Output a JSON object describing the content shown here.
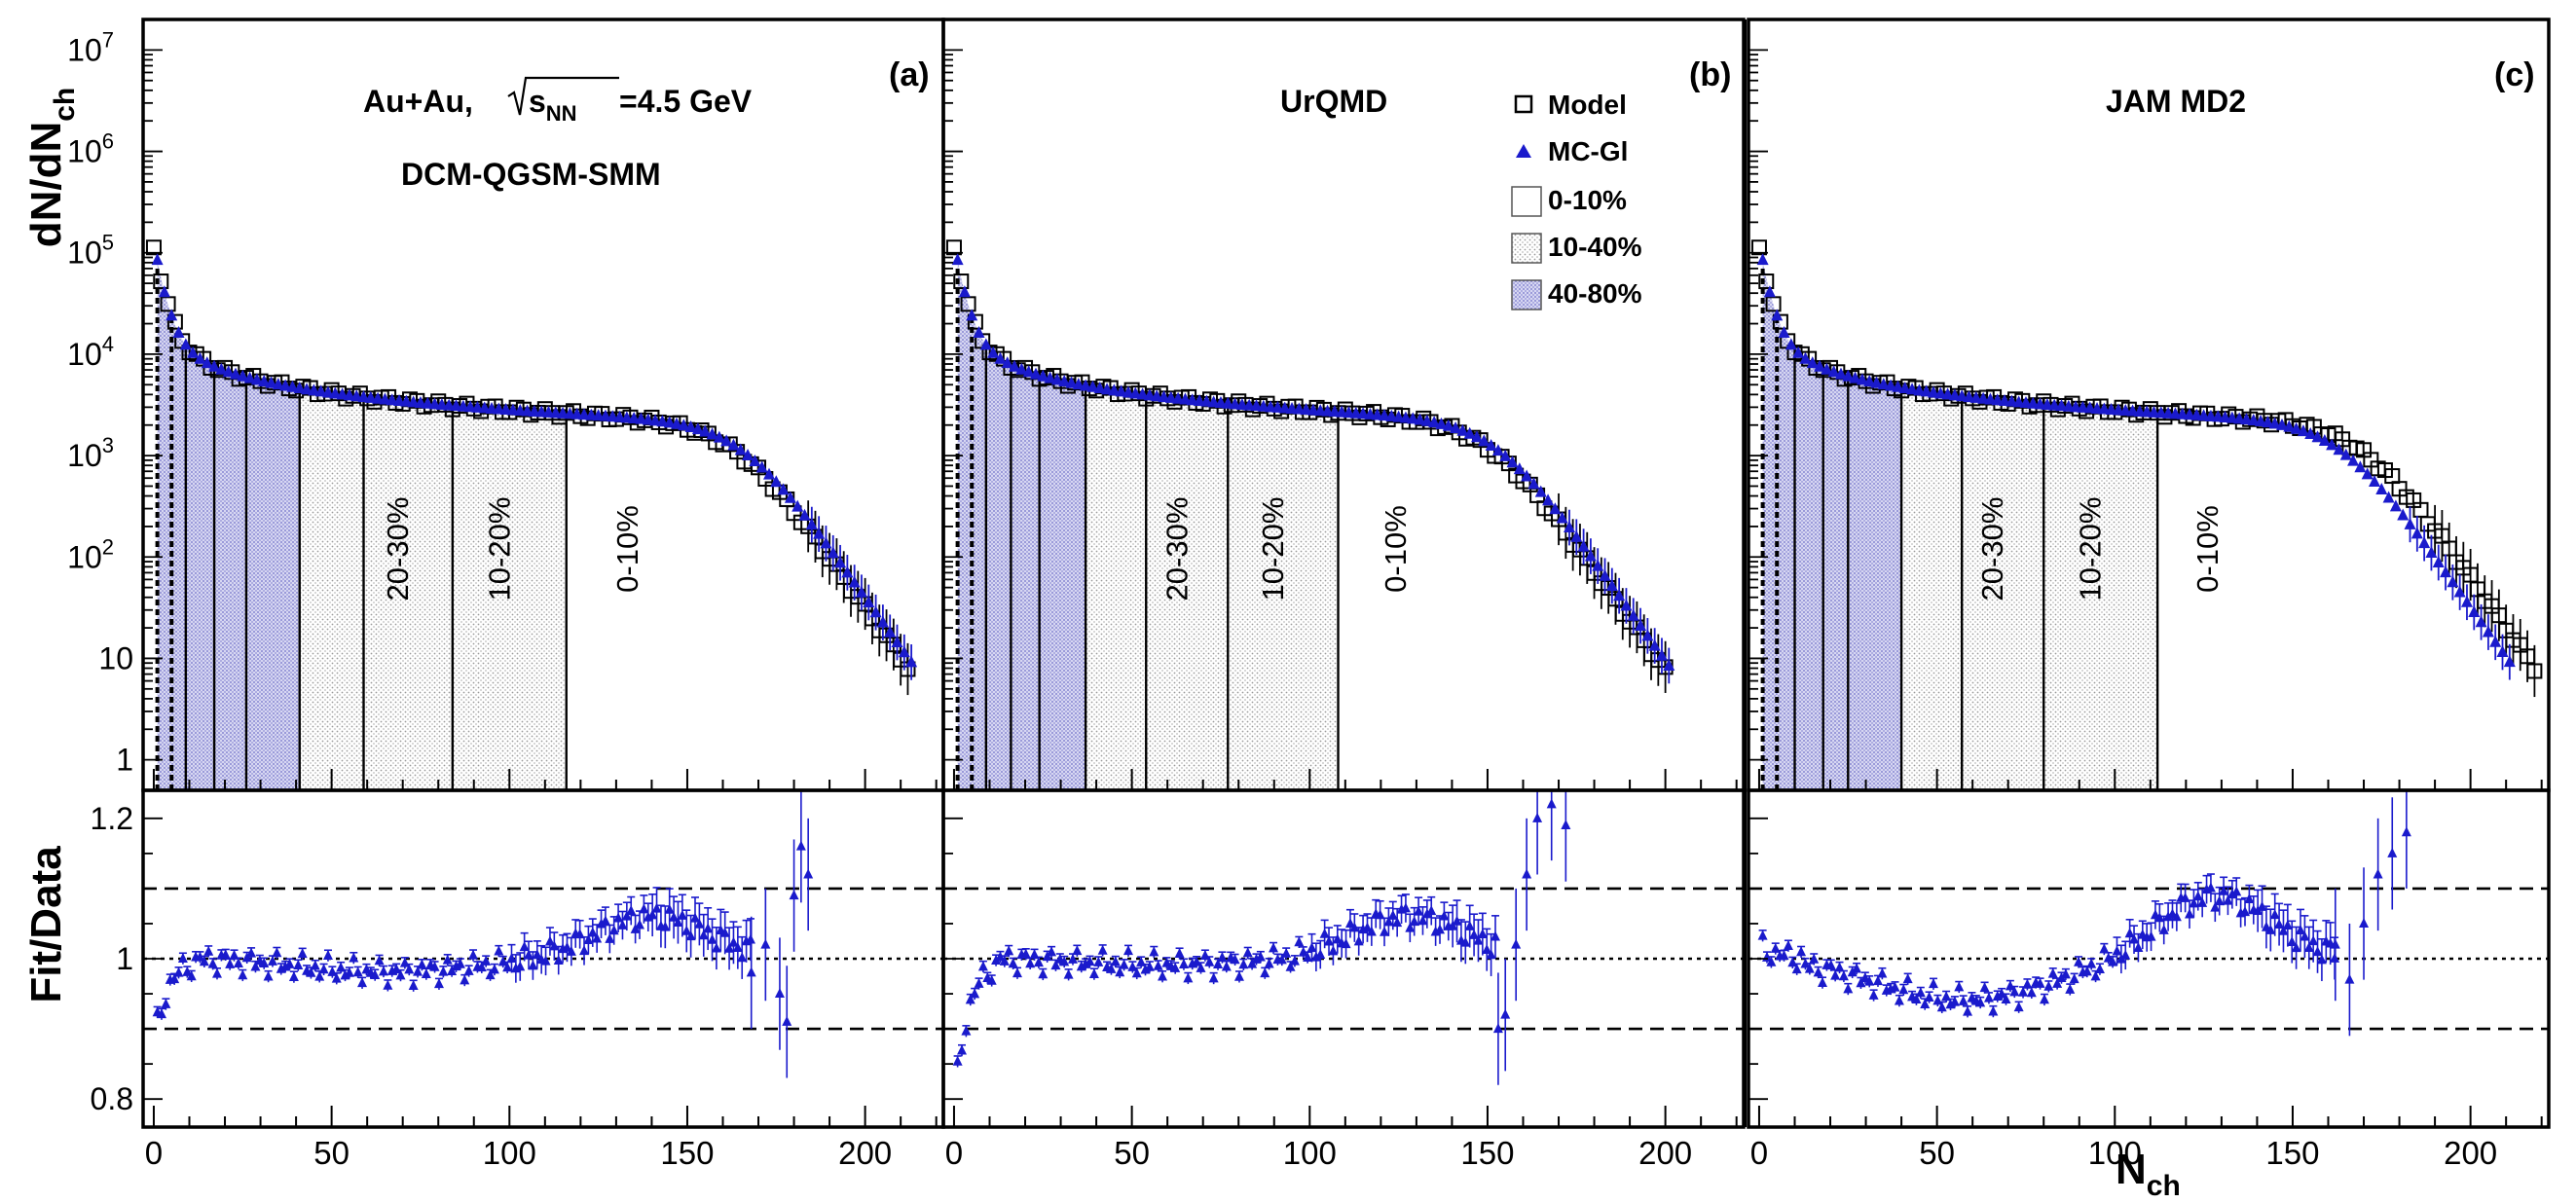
{
  "chart_data": [
    {
      "type": "scatter",
      "panel": "a",
      "generator": "DCM-QGSM-SMM",
      "collision": "Au+Au,",
      "energy_label": "s",
      "energy_sub": "NN",
      "energy_value": "=4.5 GeV",
      "xlabel": "N_ch",
      "ylabel": "dN/dN_ch",
      "xlim": [
        -3,
        222
      ],
      "ylim": [
        0.5,
        20000000
      ],
      "ylog": true,
      "ratio_ylabel": "Fit/Data",
      "ratio_ylim": [
        0.76,
        1.24
      ],
      "model_endpoint": 212,
      "fit_endpoint": 214,
      "centrality_edges": [
        1,
        5,
        9,
        17,
        26,
        41,
        59,
        84,
        116
      ],
      "class_labels": [
        {
          "label": "20-30%",
          "x": 71.5
        },
        {
          "label": "10-20%",
          "x": 100
        },
        {
          "label": "0-10%",
          "x": 136
        }
      ],
      "ratio_model": {
        "start": 0.88,
        "dip_center": 66,
        "dip": 0.02,
        "rise_center": 140,
        "rise": 0.06,
        "bump": 0.1,
        "tail": [
          [
            168,
            0.98
          ],
          [
            172,
            1.02
          ],
          [
            176,
            0.95
          ],
          [
            178,
            0.91
          ],
          [
            180,
            1.09
          ],
          [
            182,
            1.16
          ],
          [
            184,
            1.12
          ]
        ]
      }
    },
    {
      "type": "scatter",
      "panel": "b",
      "generator": "UrQMD",
      "xlabel": "N_ch",
      "ylabel": "dN/dN_ch",
      "xlim": [
        -3,
        222
      ],
      "ylim": [
        0.5,
        20000000
      ],
      "ylog": true,
      "ratio_ylim": [
        0.76,
        1.24
      ],
      "model_endpoint": 199,
      "fit_endpoint": 201,
      "centrality_edges": [
        1,
        5,
        9,
        16,
        24,
        37,
        54,
        77,
        108
      ],
      "class_labels": [
        {
          "label": "20-30%",
          "x": 65.5
        },
        {
          "label": "10-20%",
          "x": 92.5
        },
        {
          "label": "0-10%",
          "x": 127
        }
      ],
      "ratio_model": {
        "start": 0.79,
        "dip_center": 60,
        "dip": 0.01,
        "rise_center": 128,
        "rise": 0.06,
        "bump": 0.09,
        "tail": [
          [
            153,
            0.9
          ],
          [
            155,
            0.92
          ],
          [
            158,
            1.02
          ],
          [
            161,
            1.12
          ],
          [
            164,
            1.2
          ],
          [
            168,
            1.22
          ],
          [
            172,
            1.19
          ]
        ]
      }
    },
    {
      "type": "scatter",
      "panel": "c",
      "generator": "JAM MD2",
      "xlabel": "N_ch",
      "ylabel": "dN/dN_ch",
      "xlim": [
        -3,
        222
      ],
      "ylim": [
        0.5,
        20000000
      ],
      "ylog": true,
      "ratio_ylim": [
        0.76,
        1.24
      ],
      "model_endpoint": 218,
      "fit_endpoint": 212,
      "centrality_edges": [
        1,
        5,
        10,
        18,
        25,
        40,
        57,
        80,
        112
      ],
      "class_labels": [
        {
          "label": "20-30%",
          "x": 68.5
        },
        {
          "label": "10-20%",
          "x": 96
        },
        {
          "label": "0-10%",
          "x": 129
        }
      ],
      "ratio_model": {
        "start": 1.02,
        "dip_center": 58,
        "dip": 0.06,
        "rise_center": 128,
        "rise": 0.09,
        "bump": 0.12,
        "tail": [
          [
            162,
            1.02
          ],
          [
            166,
            0.97
          ],
          [
            170,
            1.05
          ],
          [
            174,
            1.12
          ],
          [
            178,
            1.15
          ],
          [
            182,
            1.18
          ]
        ]
      }
    }
  ],
  "panel_labels": [
    "(a)",
    "(b)",
    "(c)"
  ],
  "legend": {
    "model": "Model",
    "mcgl": "MC-Gl",
    "class1": "0-10%",
    "class2": "10-40%",
    "class3": "40-80%"
  },
  "axes": {
    "ylabel_main": "dN/dN",
    "ylabel_main_sub": "ch",
    "ylabel_ratio": "Fit/Data",
    "xlabel_main": "N",
    "xlabel_sub": "ch",
    "x_ticks": [
      "0",
      "50",
      "100",
      "150",
      "200"
    ],
    "y_ticks_main": [
      "1",
      "10",
      "10",
      "10",
      "10",
      "10",
      "10",
      "10"
    ],
    "y_ticks_exp": [
      "",
      "",
      "2",
      "3",
      "4",
      "5",
      "6",
      "7"
    ],
    "y_ticks_ratio": [
      "0.8",
      "1",
      "1.2"
    ]
  },
  "colors": {
    "fit_marker": "#1a1acc",
    "model_marker": "#000000",
    "fill_peripheral": "#8f8fd6",
    "fill_mid": "#b4b4b4"
  }
}
